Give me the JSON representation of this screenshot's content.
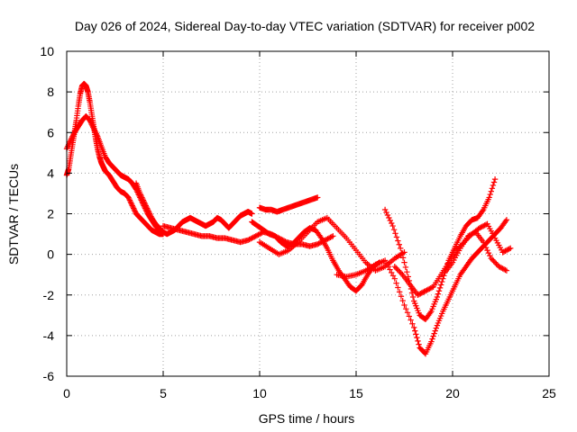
{
  "chart_data": {
    "type": "scatter",
    "title": "Day 026 of 2024, Sidereal Day-to-day VTEC variation (SDTVAR) for receiver p002",
    "xlabel": "GPS time / hours",
    "ylabel": "SDTVAR / TECUs",
    "xlim": [
      0,
      25
    ],
    "ylim": [
      -6,
      10
    ],
    "xticks": [
      0,
      5,
      10,
      15,
      20,
      25
    ],
    "yticks": [
      -6,
      -4,
      -2,
      0,
      2,
      4,
      6,
      8,
      10
    ],
    "xtick_labels": [
      "0",
      "5",
      "10",
      "15",
      "20",
      "25"
    ],
    "ytick_labels": [
      "-6",
      "-4",
      "-2",
      "0",
      "2",
      "4",
      "6",
      "8",
      "10"
    ],
    "grid": true,
    "marker": "plus",
    "marker_color": "#ff0000",
    "series": [
      {
        "name": "trace-a",
        "x": [
          0.0,
          0.1,
          0.2,
          0.3,
          0.4,
          0.5,
          0.6,
          0.7,
          0.8,
          0.9,
          1.0,
          1.1,
          1.2,
          1.3,
          1.4,
          1.5,
          1.6,
          1.7,
          1.8,
          1.9,
          2.0,
          2.2,
          2.4,
          2.6,
          2.8,
          3.0,
          3.2,
          3.4,
          3.6,
          3.8,
          4.0,
          4.2,
          4.4,
          4.6,
          4.8,
          5.0
        ],
        "y": [
          3.9,
          4.2,
          4.8,
          5.4,
          6.0,
          6.6,
          7.3,
          7.9,
          8.3,
          8.4,
          8.3,
          8.0,
          7.5,
          6.9,
          6.3,
          5.7,
          5.2,
          4.8,
          4.5,
          4.3,
          4.1,
          3.9,
          3.6,
          3.3,
          3.1,
          3.0,
          2.8,
          2.4,
          2.0,
          1.8,
          1.6,
          1.4,
          1.2,
          1.1,
          1.0,
          1.0
        ]
      },
      {
        "name": "trace-b",
        "x": [
          0.0,
          0.2,
          0.4,
          0.6,
          0.8,
          1.0,
          1.2,
          1.4,
          1.6,
          1.8,
          2.0,
          2.2,
          2.4,
          2.6,
          2.8,
          3.0,
          3.2,
          3.4,
          3.6,
          3.8,
          4.0,
          4.2,
          4.4,
          4.6,
          4.8,
          5.0
        ],
        "y": [
          5.2,
          5.6,
          6.0,
          6.3,
          6.6,
          6.8,
          6.6,
          6.2,
          5.8,
          5.3,
          4.8,
          4.5,
          4.3,
          4.1,
          3.9,
          3.8,
          3.7,
          3.5,
          3.2,
          2.8,
          2.4,
          2.0,
          1.7,
          1.4,
          1.2,
          1.1
        ]
      },
      {
        "name": "trace-c",
        "x": [
          3.6,
          3.8,
          4.0,
          4.2,
          4.4,
          4.6,
          4.8,
          5.0,
          5.2,
          5.4,
          5.6,
          5.8,
          6.0,
          6.2,
          6.4,
          6.6,
          6.8,
          7.0,
          7.2,
          7.4,
          7.6,
          7.8,
          8.0,
          8.2,
          8.4,
          8.6,
          8.8,
          9.0,
          9.2,
          9.4,
          9.6
        ],
        "y": [
          3.5,
          3.0,
          2.6,
          2.2,
          1.8,
          1.5,
          1.3,
          1.1,
          1.0,
          1.1,
          1.2,
          1.4,
          1.6,
          1.7,
          1.8,
          1.7,
          1.6,
          1.5,
          1.4,
          1.5,
          1.6,
          1.8,
          1.7,
          1.5,
          1.3,
          1.5,
          1.7,
          1.9,
          2.0,
          2.1,
          2.0
        ]
      },
      {
        "name": "trace-d",
        "x": [
          5.0,
          5.4,
          5.8,
          6.2,
          6.6,
          7.0,
          7.4,
          7.8,
          8.2,
          8.6,
          9.0,
          9.4,
          9.8,
          10.2,
          10.6,
          11.0,
          11.4,
          11.8,
          12.2,
          12.6,
          13.0,
          13.4,
          13.8
        ],
        "y": [
          1.4,
          1.3,
          1.2,
          1.1,
          1.0,
          0.9,
          0.9,
          0.8,
          0.8,
          0.7,
          0.6,
          0.7,
          0.9,
          1.1,
          1.0,
          0.8,
          0.6,
          0.5,
          0.5,
          0.4,
          0.5,
          0.7,
          0.9
        ]
      },
      {
        "name": "trace-e",
        "x": [
          10.0,
          10.3,
          10.6,
          10.9,
          11.2,
          11.5,
          11.8,
          12.1,
          12.4,
          12.7,
          13.0
        ],
        "y": [
          2.3,
          2.2,
          2.2,
          2.1,
          2.2,
          2.3,
          2.4,
          2.5,
          2.6,
          2.7,
          2.8
        ]
      },
      {
        "name": "trace-f",
        "x": [
          9.6,
          9.9,
          10.2,
          10.5,
          10.8,
          11.1,
          11.4,
          11.7,
          12.0,
          12.3,
          12.6,
          12.9,
          13.2,
          13.5,
          13.8,
          14.1,
          14.4,
          14.7,
          15.0,
          15.3,
          15.6,
          15.9,
          16.2
        ],
        "y": [
          1.6,
          1.4,
          1.2,
          1.0,
          0.9,
          0.6,
          0.4,
          0.5,
          0.8,
          1.1,
          1.3,
          1.2,
          0.8,
          0.3,
          -0.3,
          -0.8,
          -1.2,
          -1.6,
          -1.8,
          -1.5,
          -1.0,
          -0.6,
          -0.4
        ]
      },
      {
        "name": "trace-g",
        "x": [
          10.0,
          10.5,
          11.0,
          11.5,
          12.0,
          12.5,
          13.0,
          13.5,
          14.0,
          14.5,
          15.0,
          15.5,
          16.0,
          16.5,
          17.0,
          17.5
        ],
        "y": [
          0.6,
          0.3,
          0.0,
          0.2,
          0.6,
          1.1,
          1.6,
          1.8,
          1.3,
          0.8,
          0.2,
          -0.4,
          -0.8,
          -0.6,
          -0.2,
          0.1
        ]
      },
      {
        "name": "trace-h",
        "x": [
          14.0,
          14.5,
          15.0,
          15.5,
          16.0,
          16.5,
          17.0,
          17.5,
          18.0,
          18.3,
          18.6,
          18.9,
          19.2,
          19.5,
          19.8,
          20.1,
          20.4,
          20.7,
          21.0,
          21.3,
          21.6,
          21.9,
          22.2,
          22.5,
          22.8
        ],
        "y": [
          -1.0,
          -1.1,
          -1.0,
          -0.8,
          -0.5,
          -0.3,
          -1.2,
          -2.5,
          -3.6,
          -4.6,
          -4.9,
          -4.3,
          -3.5,
          -2.8,
          -2.2,
          -1.6,
          -1.0,
          -0.6,
          -0.2,
          0.1,
          0.4,
          0.7,
          1.0,
          1.3,
          1.7
        ]
      },
      {
        "name": "trace-i",
        "x": [
          16.5,
          16.9,
          17.3,
          17.7,
          18.0,
          18.3,
          18.6,
          18.9,
          19.2,
          19.5,
          19.8,
          20.1,
          20.4,
          20.7,
          21.0,
          21.3,
          21.6,
          21.9,
          22.2
        ],
        "y": [
          2.2,
          1.4,
          0.3,
          -1.1,
          -2.3,
          -3.0,
          -3.2,
          -2.8,
          -2.1,
          -1.2,
          -0.3,
          0.3,
          0.9,
          1.4,
          1.7,
          1.8,
          2.2,
          2.8,
          3.7
        ]
      },
      {
        "name": "trace-j",
        "x": [
          17.0,
          17.4,
          17.8,
          18.2,
          18.6,
          19.0,
          19.4,
          19.8,
          20.2,
          20.6,
          21.0,
          21.4,
          21.8,
          22.2,
          22.6,
          23.0
        ],
        "y": [
          -0.6,
          -1.0,
          -1.5,
          -2.0,
          -1.8,
          -1.6,
          -1.0,
          -0.4,
          0.2,
          0.6,
          1.0,
          1.3,
          1.5,
          0.8,
          0.1,
          0.3
        ]
      },
      {
        "name": "trace-k",
        "x": [
          19.6,
          20.0,
          20.4,
          20.8,
          21.2,
          21.6,
          22.0,
          22.4,
          22.8
        ],
        "y": [
          -0.9,
          -0.4,
          0.3,
          0.9,
          1.1,
          0.6,
          -0.2,
          -0.6,
          -0.8
        ]
      }
    ]
  }
}
